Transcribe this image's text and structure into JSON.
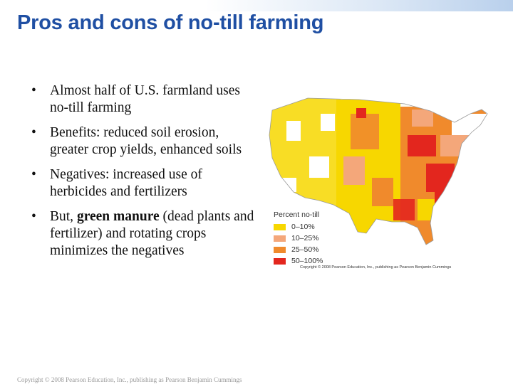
{
  "slide": {
    "title": "Pros and cons of no-till farming",
    "bullets": [
      {
        "marker": "•",
        "text": "Almost half of U.S. farmland uses no-till farming"
      },
      {
        "marker": "•",
        "text": "Benefits: reduced soil erosion, greater crop yields, enhanced soils"
      },
      {
        "marker": "•",
        "text": "Negatives: increased use of herbicides and fertilizers"
      },
      {
        "marker": "•",
        "prefix": "But, ",
        "bold": "green manure",
        "suffix": " (dead plants and fertilizer) and rotating crops minimizes the negatives"
      }
    ],
    "footer": "Copyright © 2008 Pearson Education, Inc., publishing as Pearson Benjamin Cummings"
  },
  "map": {
    "legend_title": "Percent no-till",
    "legend": [
      {
        "label": "0–10%",
        "color": "#f7d700"
      },
      {
        "label": "10–25%",
        "color": "#f4a77a"
      },
      {
        "label": "25–50%",
        "color": "#f08a2c"
      },
      {
        "label": "50–100%",
        "color": "#e3261e"
      }
    ],
    "credit": "Copyright © 2008 Pearson Education, Inc., publishing as Pearson Benjamin Cummings"
  }
}
